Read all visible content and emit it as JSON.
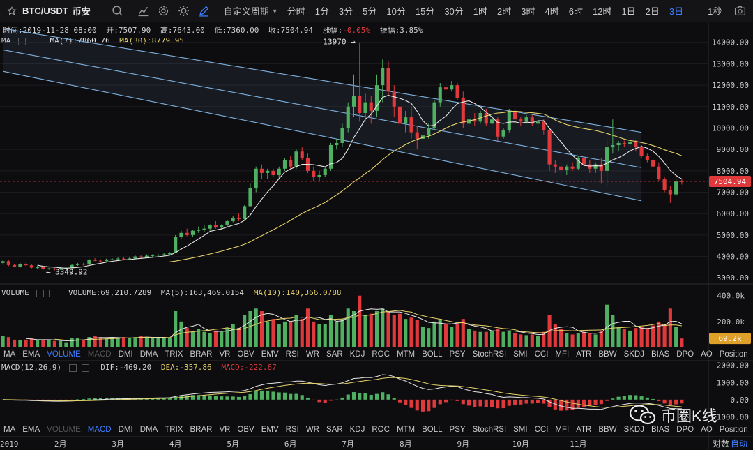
{
  "toolbar": {
    "star_icon": "star-outline-icon",
    "symbol": "BTC/USDT",
    "exchange": "币安",
    "custom_period": "自定义周期",
    "periods": [
      "分时",
      "1分",
      "3分",
      "5分",
      "10分",
      "15分",
      "30分",
      "1时",
      "2时",
      "3时",
      "4时",
      "6时",
      "12时",
      "1日",
      "2日",
      "3日"
    ],
    "active_period": "3日",
    "right_label": "1秒",
    "accent_color": "#3d7dff"
  },
  "info_bar": {
    "time": "时间:2019-11-28 08:00",
    "open": "开:7507.90",
    "high": "高:7643.00",
    "low": "低:7360.00",
    "close": "收:7504.94",
    "change_label": "涨幅:",
    "change_value": "-0.05%",
    "amplitude": "振幅:3.85%"
  },
  "ma_line": {
    "name": "MA",
    "ma7": "MA(7):7860.76",
    "ma30": "MA(30):8779.95"
  },
  "volume_line": {
    "name": "VOLUME",
    "volume": "VOLUME:69,210.7289",
    "ma5": "MA(5):163,469.0154",
    "ma10": "MA(10):140,366.0788"
  },
  "macd_line": {
    "name": "MACD(12,26,9)",
    "dif": "DIF:-469.20",
    "dea": "DEA:-357.86",
    "macd": "MACD:-222.67"
  },
  "indicator_tabs": [
    "MA",
    "EMA",
    "VOLUME",
    "MACD",
    "DMI",
    "DMA",
    "TRIX",
    "BRAR",
    "VR",
    "OBV",
    "EMV",
    "RSI",
    "WR",
    "SAR",
    "KDJ",
    "ROC",
    "MTM",
    "BOLL",
    "PSY",
    "StochRSI",
    "SMI",
    "CCI",
    "MFI",
    "ATR",
    "BBW",
    "SKDJ",
    "BIAS",
    "DPO",
    "AO",
    "Position"
  ],
  "watermark": "币圈K线",
  "footer": {
    "log_label": "对数",
    "auto_label": "自动"
  },
  "colors": {
    "up": "#4fb061",
    "down": "#e0393c",
    "ma7": "#e8e8e8",
    "ma30": "#e6d36a",
    "channel": "#7fb2e0",
    "price_tag": "#e0393c",
    "vol_tag": "#e0a12a"
  },
  "chart_data": {
    "type": "candlestick",
    "interval": "3日",
    "price_axis": {
      "ticks": [
        3000,
        4000,
        5000,
        6000,
        7000,
        8000,
        9000,
        10000,
        11000,
        12000,
        13000,
        14000
      ],
      "tick_labels": [
        "3000.00",
        "4000.00",
        "5000.00",
        "6000.00",
        "7000.00",
        "8000.00",
        "9000.00",
        "10000.00",
        "11000.00",
        "12000.00",
        "13000.00",
        "14000.00"
      ],
      "range": [
        2780,
        14350
      ],
      "current_price_label": "7504.94"
    },
    "annotations": {
      "high_label": "13970 →",
      "high_value": 13970,
      "low_label": "← 3349.92",
      "low_value": 3349.92
    },
    "volume_axis": {
      "ticks": [
        0,
        200000,
        400000
      ],
      "tick_labels": [
        "0",
        "200.0k",
        "400.0k"
      ],
      "range": [
        0,
        420000
      ],
      "current_volume_label": "69.2k"
    },
    "macd_axis": {
      "ticks": [
        -1000,
        0,
        1000,
        2000
      ],
      "tick_labels": [
        "-1000.00",
        "0.00",
        "1000.00",
        "2000.00"
      ],
      "range": [
        -1350,
        2150
      ]
    },
    "x_axis_labels": [
      "2019",
      "2月",
      "3月",
      "4月",
      "5月",
      "6月",
      "7月",
      "8月",
      "9月",
      "10月",
      "11月"
    ],
    "x_axis_label_candle_index": [
      0,
      10,
      20,
      30,
      40,
      50,
      60,
      70,
      80,
      90,
      100
    ],
    "channel_lines": [
      {
        "name": "upper",
        "start": [
          0,
          14650
        ],
        "end": [
          111,
          9800
        ]
      },
      {
        "name": "middle",
        "start": [
          0,
          13650
        ],
        "end": [
          111,
          8150
        ]
      },
      {
        "name": "lower",
        "start": [
          0,
          12650
        ],
        "end": [
          111,
          6600
        ]
      }
    ],
    "candles_ohlcv": [
      [
        3700,
        3850,
        3620,
        3780,
        90000
      ],
      [
        3780,
        3820,
        3550,
        3600,
        80000
      ],
      [
        3600,
        3650,
        3500,
        3530,
        60000
      ],
      [
        3530,
        3700,
        3480,
        3650,
        55000
      ],
      [
        3650,
        3700,
        3550,
        3590,
        60000
      ],
      [
        3590,
        3620,
        3450,
        3480,
        70000
      ],
      [
        3480,
        3560,
        3400,
        3500,
        55000
      ],
      [
        3500,
        3540,
        3350,
        3420,
        60000
      ],
      [
        3420,
        3480,
        3380,
        3440,
        55000
      ],
      [
        3440,
        3460,
        3350,
        3400,
        50000
      ],
      [
        3400,
        3500,
        3380,
        3460,
        50000
      ],
      [
        3460,
        3500,
        3420,
        3470,
        40000
      ],
      [
        3470,
        3650,
        3440,
        3600,
        70000
      ],
      [
        3600,
        3700,
        3560,
        3650,
        70000
      ],
      [
        3650,
        3700,
        3580,
        3620,
        60000
      ],
      [
        3620,
        3880,
        3600,
        3840,
        80000
      ],
      [
        3840,
        3920,
        3780,
        3800,
        90000
      ],
      [
        3800,
        3860,
        3720,
        3780,
        80000
      ],
      [
        3780,
        3900,
        3760,
        3860,
        70000
      ],
      [
        3860,
        3920,
        3820,
        3870,
        70000
      ],
      [
        3870,
        3950,
        3840,
        3900,
        70000
      ],
      [
        3900,
        3960,
        3860,
        3880,
        80000
      ],
      [
        3880,
        3950,
        3850,
        3910,
        70000
      ],
      [
        3910,
        4050,
        3880,
        4000,
        80000
      ],
      [
        4000,
        4050,
        3900,
        3950,
        90000
      ],
      [
        3950,
        4100,
        3920,
        4030,
        80000
      ],
      [
        4030,
        4100,
        3980,
        4050,
        70000
      ],
      [
        4050,
        4120,
        4000,
        4080,
        70000
      ],
      [
        4080,
        4160,
        4020,
        4100,
        80000
      ],
      [
        4100,
        4200,
        4050,
        4160,
        70000
      ],
      [
        4160,
        5000,
        4150,
        4900,
        280000
      ],
      [
        4900,
        5200,
        4800,
        5100,
        200000
      ],
      [
        5100,
        5300,
        4950,
        5000,
        150000
      ],
      [
        5000,
        5250,
        4900,
        5200,
        120000
      ],
      [
        5200,
        5400,
        5100,
        5250,
        140000
      ],
      [
        5250,
        5450,
        5150,
        5300,
        120000
      ],
      [
        5300,
        5500,
        5200,
        5450,
        110000
      ],
      [
        5450,
        5650,
        5300,
        5350,
        130000
      ],
      [
        5350,
        5500,
        5250,
        5450,
        120000
      ],
      [
        5450,
        5700,
        5400,
        5650,
        150000
      ],
      [
        5650,
        5900,
        5600,
        5800,
        180000
      ],
      [
        5800,
        6000,
        5650,
        5750,
        150000
      ],
      [
        5750,
        6400,
        5700,
        6350,
        250000
      ],
      [
        6350,
        7400,
        6300,
        7200,
        280000
      ],
      [
        7200,
        8200,
        7000,
        8100,
        300000
      ],
      [
        8100,
        8300,
        7600,
        7900,
        280000
      ],
      [
        7900,
        8100,
        7600,
        8000,
        200000
      ],
      [
        8000,
        8100,
        7700,
        7800,
        220000
      ],
      [
        7800,
        8200,
        7600,
        8100,
        180000
      ],
      [
        8100,
        8600,
        8000,
        8500,
        200000
      ],
      [
        8500,
        8700,
        8100,
        8200,
        200000
      ],
      [
        8200,
        9000,
        8100,
        8900,
        250000
      ],
      [
        8900,
        9100,
        8500,
        8600,
        220000
      ],
      [
        8600,
        8800,
        7900,
        8000,
        300000
      ],
      [
        8000,
        8200,
        7500,
        7700,
        200000
      ],
      [
        7700,
        8000,
        7500,
        7800,
        180000
      ],
      [
        7800,
        8200,
        7700,
        8100,
        180000
      ],
      [
        8100,
        9300,
        8000,
        9200,
        250000
      ],
      [
        9200,
        9500,
        9000,
        9300,
        200000
      ],
      [
        9300,
        10200,
        9100,
        10000,
        220000
      ],
      [
        10000,
        11200,
        9800,
        11000,
        300000
      ],
      [
        11000,
        12500,
        10500,
        11500,
        280000
      ],
      [
        11500,
        13970,
        10300,
        10700,
        400000
      ],
      [
        10700,
        11600,
        10300,
        11200,
        250000
      ],
      [
        11200,
        11500,
        10200,
        10800,
        260000
      ],
      [
        10800,
        12500,
        10500,
        12000,
        280000
      ],
      [
        12000,
        13200,
        11200,
        12800,
        300000
      ],
      [
        12800,
        13100,
        11500,
        11700,
        280000
      ],
      [
        11700,
        12000,
        10500,
        11000,
        250000
      ],
      [
        11000,
        11300,
        9200,
        10200,
        260000
      ],
      [
        10200,
        10800,
        9800,
        10500,
        220000
      ],
      [
        10500,
        11000,
        9500,
        9800,
        230000
      ],
      [
        9800,
        10100,
        9000,
        9500,
        210000
      ],
      [
        9500,
        9800,
        9100,
        9650,
        160000
      ],
      [
        9650,
        10200,
        9500,
        10000,
        150000
      ],
      [
        10000,
        11300,
        9900,
        11200,
        200000
      ],
      [
        11200,
        12100,
        11000,
        11900,
        220000
      ],
      [
        11900,
        12100,
        11200,
        11800,
        180000
      ],
      [
        11800,
        12200,
        11700,
        12000,
        160000
      ],
      [
        12000,
        12100,
        11300,
        11400,
        180000
      ],
      [
        11400,
        11700,
        10000,
        10200,
        220000
      ],
      [
        10200,
        10600,
        10000,
        10400,
        140000
      ],
      [
        10400,
        10700,
        10100,
        10300,
        130000
      ],
      [
        10300,
        10800,
        10200,
        10700,
        120000
      ],
      [
        10700,
        10900,
        10100,
        10200,
        120000
      ],
      [
        10200,
        10600,
        9900,
        10400,
        130000
      ],
      [
        10400,
        10500,
        9400,
        9600,
        140000
      ],
      [
        9600,
        10000,
        9500,
        9900,
        120000
      ],
      [
        9900,
        10900,
        9800,
        10800,
        130000
      ],
      [
        10800,
        11000,
        10300,
        10400,
        110000
      ],
      [
        10400,
        10500,
        10100,
        10300,
        100000
      ],
      [
        10300,
        10600,
        10200,
        10500,
        95000
      ],
      [
        10500,
        10600,
        10100,
        10200,
        100000
      ],
      [
        10200,
        10400,
        10000,
        10300,
        90000
      ],
      [
        10300,
        10400,
        9700,
        9900,
        120000
      ],
      [
        9900,
        10000,
        8000,
        8300,
        250000
      ],
      [
        8300,
        8500,
        7900,
        8200,
        180000
      ],
      [
        8200,
        8400,
        7800,
        8050,
        140000
      ],
      [
        8050,
        8300,
        7800,
        8200,
        110000
      ],
      [
        8200,
        8400,
        8000,
        8100,
        100000
      ],
      [
        8100,
        8700,
        8050,
        8600,
        110000
      ],
      [
        8600,
        8700,
        8200,
        8300,
        120000
      ],
      [
        8300,
        8500,
        7900,
        8100,
        110000
      ],
      [
        8100,
        8400,
        7900,
        8300,
        100000
      ],
      [
        8300,
        8600,
        7400,
        8000,
        130000
      ],
      [
        8000,
        9500,
        7300,
        9100,
        330000
      ],
      [
        9100,
        10400,
        8800,
        9200,
        250000
      ],
      [
        9200,
        9400,
        8900,
        9300,
        160000
      ],
      [
        9300,
        9400,
        9100,
        9250,
        140000
      ],
      [
        9250,
        9450,
        9100,
        9350,
        130000
      ],
      [
        9350,
        9450,
        8900,
        9100,
        150000
      ],
      [
        9100,
        9200,
        8600,
        8700,
        160000
      ],
      [
        8700,
        8800,
        8400,
        8500,
        150000
      ],
      [
        8500,
        8600,
        8100,
        8200,
        170000
      ],
      [
        8200,
        8400,
        7500,
        7600,
        200000
      ],
      [
        7600,
        7700,
        7000,
        7100,
        180000
      ],
      [
        7100,
        7300,
        6500,
        6900,
        300000
      ],
      [
        6900,
        7700,
        6800,
        7500,
        160000
      ],
      [
        7508,
        7643,
        7360,
        7505,
        69211
      ]
    ]
  }
}
